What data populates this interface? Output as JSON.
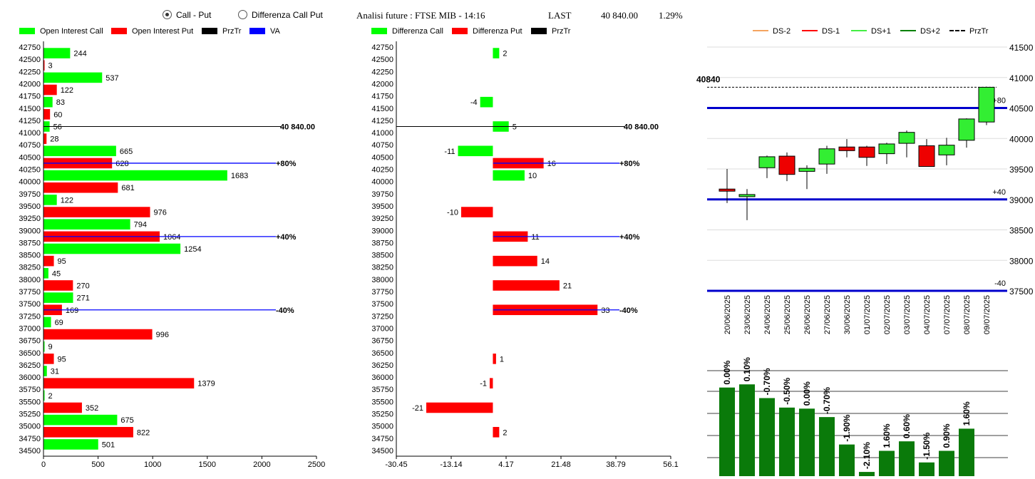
{
  "header": {
    "radio_call_put": "Call - Put",
    "radio_diff": "Differenza Call Put",
    "selected": "call_put",
    "title": "Analisi future : FTSE MIB - 14:16",
    "last_label": "LAST",
    "last_value": "40 840.00",
    "change": "1.29%"
  },
  "legend_oi": [
    {
      "label": "Open Interest Call",
      "color": "#00ff00"
    },
    {
      "label": "Open Interest Put",
      "color": "#ff0000"
    },
    {
      "label": "PrzTr",
      "color": "#000000"
    },
    {
      "label": "VA",
      "color": "#0000ff"
    }
  ],
  "legend_diff": [
    {
      "label": "Differenza Call",
      "color": "#00ff00"
    },
    {
      "label": "Differenza Put",
      "color": "#ff0000"
    },
    {
      "label": "PrzTr",
      "color": "#000000"
    }
  ],
  "legend_candle": [
    {
      "label": "DS-2",
      "color": "#f4a460",
      "style": "solid"
    },
    {
      "label": "DS-1",
      "color": "#ff0000",
      "style": "solid"
    },
    {
      "label": "DS+1",
      "color": "#44ee44",
      "style": "solid"
    },
    {
      "label": "DS+2",
      "color": "#008000",
      "style": "solid"
    },
    {
      "label": "PrzTr",
      "color": "#000000",
      "style": "dashed"
    }
  ],
  "chart_data": [
    {
      "type": "bar",
      "orientation": "horizontal",
      "strikes": [
        "42750",
        "42500",
        "42250",
        "42000",
        "41750",
        "41500",
        "41250",
        "41000",
        "40750",
        "40500",
        "40250",
        "40000",
        "39750",
        "39500",
        "39250",
        "39000",
        "38750",
        "38500",
        "38250",
        "38000",
        "37750",
        "37500",
        "37250",
        "37000",
        "36750",
        "36500",
        "36250",
        "36000",
        "35750",
        "35500",
        "35250",
        "35000",
        "34750",
        "34500"
      ],
      "series": [
        {
          "name": "Open Interest Call",
          "color": "#00ff00",
          "points": [
            [
              "42500",
              244
            ],
            [
              "42000",
              537
            ],
            [
              "41500",
              83
            ],
            [
              "41000",
              56
            ],
            [
              "40500",
              665
            ],
            [
              "40000",
              1683
            ],
            [
              "39500",
              122
            ],
            [
              "39000",
              794
            ],
            [
              "38500",
              1254
            ],
            [
              "38000",
              45
            ],
            [
              "37500",
              271
            ],
            [
              "37000",
              69
            ],
            [
              "36500",
              9
            ],
            [
              "36000",
              31
            ],
            [
              "35500",
              2
            ],
            [
              "35000",
              675
            ],
            [
              "34500",
              501
            ]
          ]
        },
        {
          "name": "Open Interest Put",
          "color": "#ff0000",
          "points": [
            [
              "42500",
              3
            ],
            [
              "42000",
              122
            ],
            [
              "41500",
              60
            ],
            [
              "41000",
              28
            ],
            [
              "40500",
              628
            ],
            [
              "40000",
              681
            ],
            [
              "39500",
              976
            ],
            [
              "39000",
              1064
            ],
            [
              "38500",
              95
            ],
            [
              "38000",
              270
            ],
            [
              "37500",
              169
            ],
            [
              "37000",
              996
            ],
            [
              "36500",
              95
            ],
            [
              "36000",
              1379
            ],
            [
              "35500",
              352
            ],
            [
              "35000",
              822
            ]
          ]
        }
      ],
      "xlim": [
        0,
        2500
      ],
      "xticks": [
        "0",
        "500",
        "1000",
        "1500",
        "2000",
        "2500"
      ],
      "price_line": {
        "strike_pos": 41000,
        "offset": -0.5,
        "label": "40 840.00",
        "color": "#000000"
      },
      "va_lines": [
        {
          "strike_pos": 40500,
          "offset": 0.5,
          "label": "+80%",
          "color": "#0000ff"
        },
        {
          "strike_pos": 39000,
          "offset": 0.5,
          "label": "+40%",
          "color": "#0000ff"
        },
        {
          "strike_pos": 37500,
          "offset": 0.5,
          "label": "-40%",
          "color": "#0000ff"
        }
      ]
    },
    {
      "type": "bar",
      "orientation": "horizontal",
      "strikes": [
        "42750",
        "42500",
        "42250",
        "42000",
        "41750",
        "41500",
        "41250",
        "41000",
        "40750",
        "40500",
        "40250",
        "40000",
        "39750",
        "39500",
        "39250",
        "39000",
        "38750",
        "38500",
        "38250",
        "38000",
        "37750",
        "37500",
        "37250",
        "37000",
        "36750",
        "36500",
        "36250",
        "36000",
        "35750",
        "35500",
        "35250",
        "35000",
        "34750",
        "34500"
      ],
      "series": [
        {
          "name": "Differenza Call",
          "color": "#00ff00",
          "points": [
            [
              "42500",
              2
            ],
            [
              "41500",
              -4
            ],
            [
              "41000",
              5
            ],
            [
              "40500",
              -11
            ],
            [
              "40000",
              10
            ]
          ]
        },
        {
          "name": "Differenza Put",
          "color": "#ff0000",
          "points": [
            [
              "40500",
              16
            ],
            [
              "39500",
              -10
            ],
            [
              "39000",
              11
            ],
            [
              "38500",
              14
            ],
            [
              "38000",
              21
            ],
            [
              "37500",
              33
            ],
            [
              "36500",
              1
            ],
            [
              "36000",
              -1
            ],
            [
              "35500",
              -21
            ],
            [
              "35000",
              2
            ]
          ]
        }
      ],
      "xlim": [
        -30.45,
        56.1
      ],
      "xticks": [
        "-30.45",
        "-13.14",
        "4.17",
        "21.48",
        "38.79",
        "56.1"
      ],
      "price_line": {
        "strike_pos": 41000,
        "offset": -0.5,
        "label": "40 840.00",
        "color": "#000000"
      },
      "va_lines": [
        {
          "strike_pos": 40500,
          "offset": 0.5,
          "label": "+80%",
          "color": "#0000ff"
        },
        {
          "strike_pos": 39000,
          "offset": 0.5,
          "label": "+40%",
          "color": "#0000ff"
        },
        {
          "strike_pos": 37500,
          "offset": 0.5,
          "label": "-40%",
          "color": "#0000ff"
        }
      ]
    },
    {
      "type": "candlestick",
      "dates": [
        "20/06/2025",
        "23/06/2025",
        "24/06/2025",
        "25/06/2025",
        "26/06/2025",
        "27/06/2025",
        "30/06/2025",
        "01/07/2025",
        "02/07/2025",
        "03/07/2025",
        "04/07/2025",
        "07/07/2025",
        "08/07/2025",
        "09/07/2025"
      ],
      "candles": [
        {
          "open": 39170,
          "high": 39500,
          "low": 38940,
          "close": 39150
        },
        {
          "open": 39050,
          "high": 39170,
          "low": 38660,
          "close": 39080
        },
        {
          "open": 39520,
          "high": 39720,
          "low": 39350,
          "close": 39700
        },
        {
          "open": 39710,
          "high": 39770,
          "low": 39300,
          "close": 39410
        },
        {
          "open": 39460,
          "high": 39560,
          "low": 39170,
          "close": 39510
        },
        {
          "open": 39580,
          "high": 39880,
          "low": 39420,
          "close": 39830
        },
        {
          "open": 39860,
          "high": 39990,
          "low": 39690,
          "close": 39800
        },
        {
          "open": 39860,
          "high": 39880,
          "low": 39550,
          "close": 39690
        },
        {
          "open": 39750,
          "high": 39930,
          "low": 39580,
          "close": 39910
        },
        {
          "open": 39920,
          "high": 40130,
          "low": 39690,
          "close": 40100
        },
        {
          "open": 39880,
          "high": 39990,
          "low": 39540,
          "close": 39540
        },
        {
          "open": 39730,
          "high": 40010,
          "low": 39560,
          "close": 39890
        },
        {
          "open": 39970,
          "high": 40330,
          "low": 39850,
          "close": 40320
        },
        {
          "open": 40270,
          "high": 40850,
          "low": 40220,
          "close": 40840
        }
      ],
      "ylim": [
        37500,
        41500
      ],
      "yticks": [
        "41500",
        "41000",
        "40500",
        "40000",
        "39500",
        "39000",
        "38500",
        "38000",
        "37500"
      ],
      "price_level": {
        "value": 40840,
        "label": "40840"
      },
      "levels": [
        {
          "value": 40500,
          "label": "+80",
          "color": "#0000cc"
        },
        {
          "value": 39000,
          "label": "+40",
          "color": "#0000cc"
        },
        {
          "value": 37500,
          "label": "-40",
          "color": "#0000cc"
        }
      ]
    },
    {
      "type": "bar",
      "values": [
        0.0,
        0.1,
        -0.7,
        -0.5,
        0.0,
        -0.7,
        -1.9,
        -2.1,
        1.6,
        0.6,
        -1.5,
        0.9,
        1.6
      ],
      "labels": [
        "0.00%",
        "0.10%",
        "-0.70%",
        "-0.50%",
        "0.00%",
        "-0.70%",
        "-1.90%",
        "-2.10%",
        "1.60%",
        "0.60%",
        "-1.50%",
        "0.90%",
        "1.60%"
      ],
      "bar_levels": [
        0.84,
        0.87,
        0.74,
        0.65,
        0.64,
        0.56,
        0.3,
        0.04,
        0.24,
        0.33,
        0.13,
        0.24,
        0.45
      ],
      "color": "#0a7a0a"
    }
  ]
}
